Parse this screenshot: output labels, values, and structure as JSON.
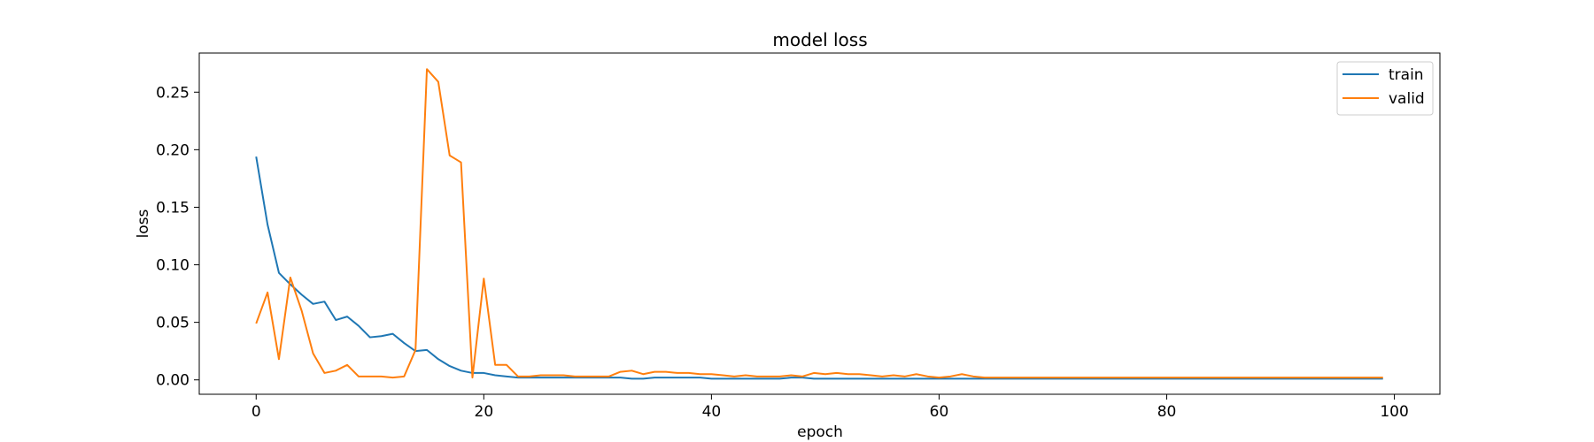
{
  "chart_data": {
    "type": "line",
    "title": "model loss",
    "xlabel": "epoch",
    "ylabel": "loss",
    "xlim": [
      -5,
      104
    ],
    "ylim": [
      -0.0125,
      0.284
    ],
    "xticks": [
      0,
      20,
      40,
      60,
      80,
      100
    ],
    "yticks": [
      0.0,
      0.05,
      0.1,
      0.15,
      0.2,
      0.25
    ],
    "xtick_labels": [
      "0",
      "20",
      "40",
      "60",
      "80",
      "100"
    ],
    "ytick_labels": [
      "0.00",
      "0.05",
      "0.10",
      "0.15",
      "0.20",
      "0.25"
    ],
    "grid": false,
    "legend_position": "upper right",
    "series": [
      {
        "name": "train",
        "color": "#1f77b4",
        "values": [
          0.194,
          0.135,
          0.093,
          0.083,
          0.074,
          0.066,
          0.068,
          0.052,
          0.055,
          0.047,
          0.037,
          0.038,
          0.04,
          0.032,
          0.025,
          0.026,
          0.018,
          0.012,
          0.008,
          0.006,
          0.006,
          0.004,
          0.003,
          0.002,
          0.002,
          0.002,
          0.002,
          0.002,
          0.002,
          0.002,
          0.002,
          0.002,
          0.002,
          0.001,
          0.001,
          0.002,
          0.002,
          0.002,
          0.002,
          0.002,
          0.001,
          0.001,
          0.001,
          0.001,
          0.001,
          0.001,
          0.001,
          0.002,
          0.002,
          0.001,
          0.001,
          0.001,
          0.001,
          0.001,
          0.001,
          0.001,
          0.001,
          0.001,
          0.001,
          0.001,
          0.001,
          0.001,
          0.001,
          0.001,
          0.001,
          0.001,
          0.001,
          0.001,
          0.001,
          0.001,
          0.001,
          0.001,
          0.001,
          0.001,
          0.001,
          0.001,
          0.001,
          0.001,
          0.001,
          0.001,
          0.001,
          0.001,
          0.001,
          0.001,
          0.001,
          0.001,
          0.001,
          0.001,
          0.001,
          0.001,
          0.001,
          0.001,
          0.001,
          0.001,
          0.001,
          0.001,
          0.001,
          0.001,
          0.001,
          0.001
        ]
      },
      {
        "name": "valid",
        "color": "#ff7f0e",
        "values": [
          0.049,
          0.076,
          0.018,
          0.089,
          0.06,
          0.023,
          0.006,
          0.008,
          0.013,
          0.003,
          0.003,
          0.003,
          0.002,
          0.003,
          0.026,
          0.27,
          0.259,
          0.195,
          0.189,
          0.002,
          0.088,
          0.013,
          0.013,
          0.003,
          0.003,
          0.004,
          0.004,
          0.004,
          0.003,
          0.003,
          0.003,
          0.003,
          0.007,
          0.008,
          0.005,
          0.007,
          0.007,
          0.006,
          0.006,
          0.005,
          0.005,
          0.004,
          0.003,
          0.004,
          0.003,
          0.003,
          0.003,
          0.004,
          0.003,
          0.006,
          0.005,
          0.006,
          0.005,
          0.005,
          0.004,
          0.003,
          0.004,
          0.003,
          0.005,
          0.003,
          0.002,
          0.003,
          0.005,
          0.003,
          0.002,
          0.002,
          0.002,
          0.002,
          0.002,
          0.002,
          0.002,
          0.002,
          0.002,
          0.002,
          0.002,
          0.002,
          0.002,
          0.002,
          0.002,
          0.002,
          0.002,
          0.002,
          0.002,
          0.002,
          0.002,
          0.002,
          0.002,
          0.002,
          0.002,
          0.002,
          0.002,
          0.002,
          0.002,
          0.002,
          0.002,
          0.002,
          0.002,
          0.002,
          0.002,
          0.002
        ]
      }
    ]
  }
}
